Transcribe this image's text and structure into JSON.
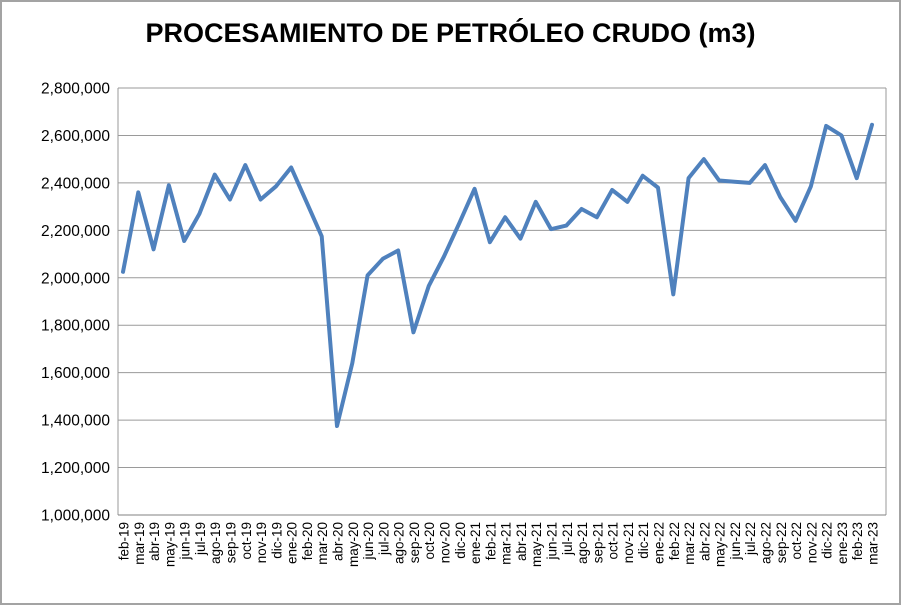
{
  "chart": {
    "line_color": "#4F81BD",
    "gridline_color": "#9a9a9a",
    "axis_line_color": "#808080",
    "text_color": "#000000",
    "background": "#ffffff"
  },
  "chart_data": {
    "type": "line",
    "title": "PROCESAMIENTO DE PETRÓLEO CRUDO (m3)",
    "xlabel": "",
    "ylabel": "",
    "ylim": [
      1000000,
      2800000
    ],
    "ytick_step": 200000,
    "yticks": [
      1000000,
      1200000,
      1400000,
      1600000,
      1800000,
      2000000,
      2200000,
      2400000,
      2600000,
      2800000
    ],
    "ytick_labels": [
      "1,000,000",
      "1,200,000",
      "1,400,000",
      "1,600,000",
      "1,800,000",
      "2,000,000",
      "2,200,000",
      "2,400,000",
      "2,600,000",
      "2,800,000"
    ],
    "grid": true,
    "legend": false,
    "categories": [
      "feb-19",
      "mar-19",
      "abr-19",
      "may-19",
      "jun-19",
      "jul-19",
      "ago-19",
      "sep-19",
      "oct-19",
      "nov-19",
      "dic-19",
      "ene-20",
      "feb-20",
      "mar-20",
      "abr-20",
      "may-20",
      "jun-20",
      "jul-20",
      "ago-20",
      "sep-20",
      "oct-20",
      "nov-20",
      "dic-20",
      "ene-21",
      "feb-21",
      "mar-21",
      "abr-21",
      "may-21",
      "jun-21",
      "jul-21",
      "ago-21",
      "sep-21",
      "oct-21",
      "nov-21",
      "dic-21",
      "ene-22",
      "feb-22",
      "mar-22",
      "abr-22",
      "may-22",
      "jun-22",
      "jul-22",
      "ago-22",
      "sep-22",
      "oct-22",
      "nov-22",
      "dic-22",
      "ene-23",
      "feb-23",
      "mar-23"
    ],
    "values": [
      2025000,
      2360000,
      2120000,
      2390000,
      2155000,
      2270000,
      2435000,
      2330000,
      2475000,
      2330000,
      2385000,
      2465000,
      2320000,
      2175000,
      1375000,
      1640000,
      2010000,
      2080000,
      2115000,
      1770000,
      1965000,
      2090000,
      2230000,
      2375000,
      2150000,
      2255000,
      2165000,
      2320000,
      2205000,
      2220000,
      2290000,
      2255000,
      2370000,
      2320000,
      2430000,
      2380000,
      1930000,
      2420000,
      2500000,
      2410000,
      2405000,
      2400000,
      2475000,
      2340000,
      2240000,
      2385000,
      2640000,
      2600000,
      2420000,
      2645000
    ]
  }
}
